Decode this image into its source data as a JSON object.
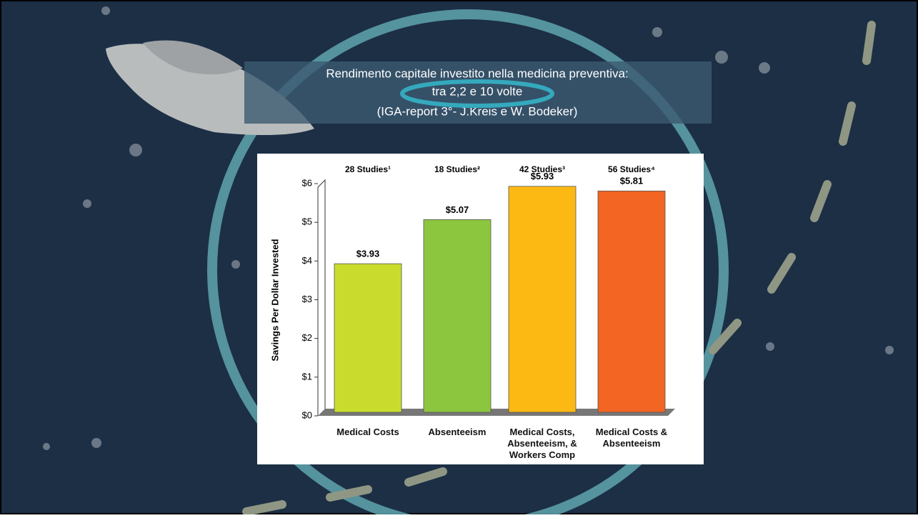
{
  "slide": {
    "title_lines": [
      "Rendimento capitale investito nella medicina preventiva:",
      "tra 2,2 e 10 volte",
      "(IGA-report 3°- J.Kreis e W. Bodeker)"
    ]
  },
  "chart_data": {
    "type": "bar",
    "y_label": "Savings Per Dollar Invested",
    "categories": [
      "Medical Costs",
      "Absenteeism",
      "Medical Costs, Absenteeism, & Workers Comp",
      "Medical Costs & Absenteeism"
    ],
    "bar_headers": [
      "28 Studies¹",
      "18 Studies²",
      "42 Studies³",
      "56 Studies⁴"
    ],
    "values": [
      3.93,
      5.07,
      5.93,
      5.81
    ],
    "value_labels": [
      "$3.93",
      "$5.07",
      "$5.93",
      "$5.81"
    ],
    "colors": [
      "#c9dc2e",
      "#8cc63f",
      "#fdb913",
      "#f26522"
    ],
    "ylim": [
      0,
      6
    ],
    "yticks": [
      {
        "value": 0,
        "label": "$0"
      },
      {
        "value": 1,
        "label": "$1"
      },
      {
        "value": 2,
        "label": "$2"
      },
      {
        "value": 3,
        "label": "$3"
      },
      {
        "value": 4,
        "label": "$4"
      },
      {
        "value": 5,
        "label": "$5"
      },
      {
        "value": 6,
        "label": "$6"
      }
    ],
    "grid": false
  }
}
